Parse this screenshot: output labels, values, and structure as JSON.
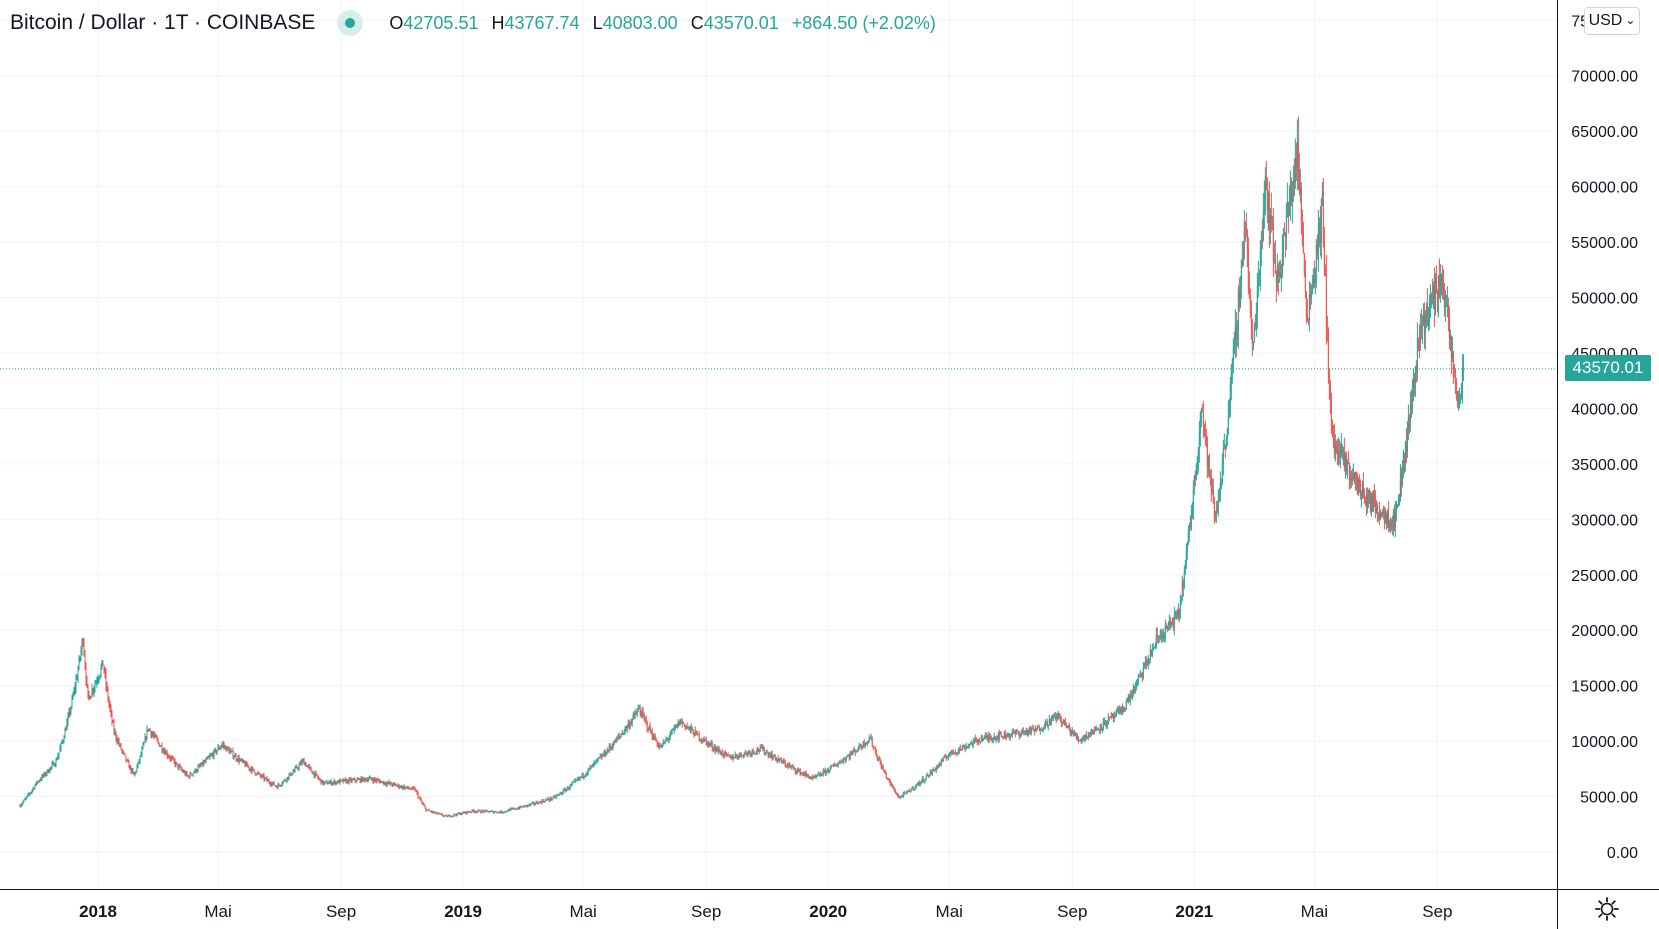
{
  "legend": {
    "symbol": "Bitcoin / Dollar · 1T · COINBASE",
    "ohlc": [
      {
        "k": "O",
        "v": "42705.51"
      },
      {
        "k": "H",
        "v": "43767.74"
      },
      {
        "k": "L",
        "v": "40803.00"
      },
      {
        "k": "C",
        "v": "43570.01"
      }
    ],
    "change": "+864.50 (+2.02%)"
  },
  "currency": "USD",
  "last_price_label": "43570.01",
  "colors": {
    "up": "#26a69a",
    "down": "#ef5350",
    "grid": "#f0f3fa",
    "axis": "#131722"
  },
  "chart_data": {
    "type": "candlestick",
    "y_ticks": [
      "0.00",
      "5000.00",
      "10000.00",
      "15000.00",
      "20000.00",
      "25000.00",
      "30000.00",
      "35000.00",
      "40000.00",
      "45000.00",
      "50000.00",
      "55000.00",
      "60000.00",
      "65000.00",
      "70000.00",
      "75000.00"
    ],
    "x_ticks": [
      {
        "label": "2018",
        "date": "2018-01-01",
        "bold": true
      },
      {
        "label": "Mai",
        "date": "2018-05-01"
      },
      {
        "label": "Sep",
        "date": "2018-09-01"
      },
      {
        "label": "2019",
        "date": "2019-01-01",
        "bold": true
      },
      {
        "label": "Mai",
        "date": "2019-05-01"
      },
      {
        "label": "Sep",
        "date": "2019-09-01"
      },
      {
        "label": "2020",
        "date": "2020-01-01",
        "bold": true
      },
      {
        "label": "Mai",
        "date": "2020-05-01"
      },
      {
        "label": "Sep",
        "date": "2020-09-01"
      },
      {
        "label": "2021",
        "date": "2021-01-01",
        "bold": true
      },
      {
        "label": "Mai",
        "date": "2021-05-01"
      },
      {
        "label": "Sep",
        "date": "2021-09-01"
      }
    ],
    "last_price": 43570.01,
    "close_path": [
      [
        "2017-10-15",
        4200
      ],
      [
        "2017-11-01",
        6300
      ],
      [
        "2017-11-20",
        8200
      ],
      [
        "2017-12-07",
        14000
      ],
      [
        "2017-12-17",
        19400
      ],
      [
        "2017-12-22",
        13800
      ],
      [
        "2018-01-06",
        17000
      ],
      [
        "2018-01-17",
        10900
      ],
      [
        "2018-02-06",
        6900
      ],
      [
        "2018-02-20",
        11200
      ],
      [
        "2018-04-01",
        6800
      ],
      [
        "2018-05-05",
        9700
      ],
      [
        "2018-06-29",
        5900
      ],
      [
        "2018-07-25",
        8200
      ],
      [
        "2018-08-14",
        6200
      ],
      [
        "2018-09-30",
        6600
      ],
      [
        "2018-11-14",
        5600
      ],
      [
        "2018-11-25",
        3800
      ],
      [
        "2018-12-15",
        3200
      ],
      [
        "2019-01-10",
        3700
      ],
      [
        "2019-02-08",
        3600
      ],
      [
        "2019-04-02",
        4900
      ],
      [
        "2019-05-15",
        8200
      ],
      [
        "2019-06-26",
        12900
      ],
      [
        "2019-07-17",
        9400
      ],
      [
        "2019-08-06",
        11800
      ],
      [
        "2019-09-24",
        8500
      ],
      [
        "2019-10-26",
        9300
      ],
      [
        "2019-12-17",
        6600
      ],
      [
        "2020-02-12",
        10300
      ],
      [
        "2020-03-12",
        4900
      ],
      [
        "2020-04-30",
        8800
      ],
      [
        "2020-06-01",
        10200
      ],
      [
        "2020-07-27",
        11000
      ],
      [
        "2020-08-17",
        12300
      ],
      [
        "2020-09-08",
        10100
      ],
      [
        "2020-10-21",
        12800
      ],
      [
        "2020-11-24",
        19100
      ],
      [
        "2020-12-16",
        21300
      ],
      [
        "2021-01-08",
        40500
      ],
      [
        "2021-01-22",
        30000
      ],
      [
        "2021-02-21",
        57500
      ],
      [
        "2021-02-28",
        45000
      ],
      [
        "2021-03-13",
        61000
      ],
      [
        "2021-03-25",
        51500
      ],
      [
        "2021-04-14",
        63500
      ],
      [
        "2021-04-24",
        48500
      ],
      [
        "2021-05-09",
        58000
      ],
      [
        "2021-05-19",
        37000
      ],
      [
        "2021-06-21",
        32000
      ],
      [
        "2021-07-20",
        29800
      ],
      [
        "2021-08-14",
        47000
      ],
      [
        "2021-09-06",
        52000
      ],
      [
        "2021-09-21",
        40700
      ],
      [
        "2021-09-27",
        42500
      ]
    ]
  }
}
